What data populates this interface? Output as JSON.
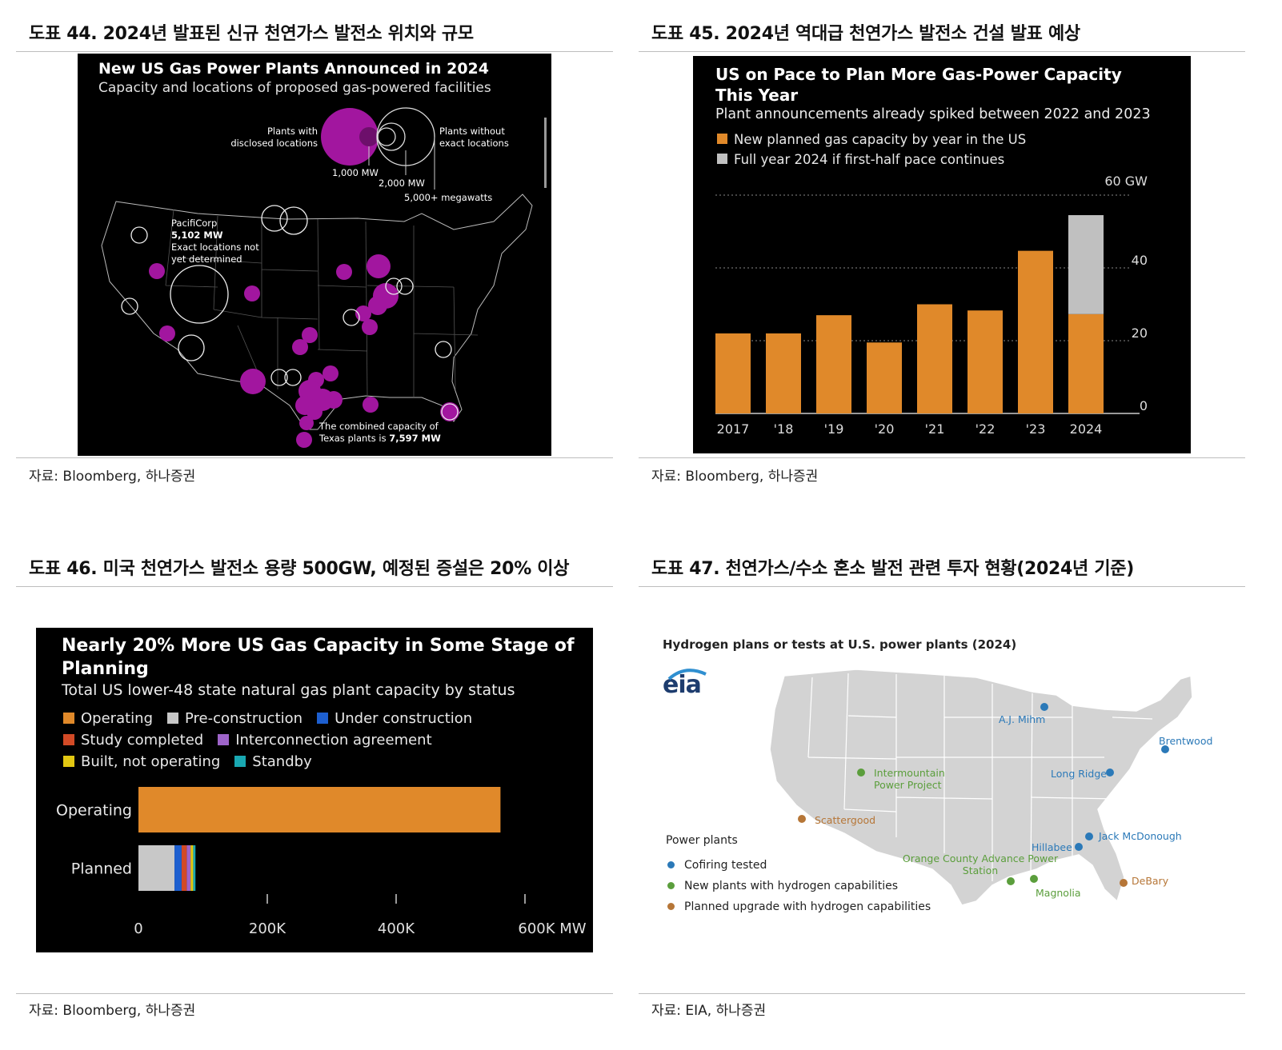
{
  "panels": {
    "p44": {
      "title": "도표 44. 2024년 발표된 신규 천연가스 발전소 위치와 규모",
      "source": "자료: Bloomberg, 하나증권",
      "figure": {
        "title": "New US Gas Power Plants Announced in 2024",
        "subtitle": "Capacity and locations of proposed gas-powered facilities",
        "legend": {
          "disclosed": "Plants with disclosed locations",
          "without": "Plants without exact locations",
          "size_1000": "1,000 MW",
          "size_2000": "2,000 MW",
          "size_5000": "5,000+ megawatts"
        },
        "annotation_pacificorp": [
          "PacifiCorp",
          "5,102 MW",
          "Exact locations not",
          "yet determined"
        ],
        "annotation_texas_line1": "The combined capacity of",
        "annotation_texas_prefix": "Texas plants is ",
        "annotation_texas_value": "7,597 MW",
        "colors": {
          "disclosed": "#a2169f",
          "without": "#ffffff",
          "background": "#000000"
        }
      }
    },
    "p45": {
      "title": "도표 45. 2024년 역대급 천연가스 발전소 건설 발표 예상",
      "source": "자료: Bloomberg, 하나증권"
    },
    "p46": {
      "title": "도표 46. 미국 천연가스 발전소 용량 500GW, 예정된 증설은 20% 이상",
      "source": "자료: Bloomberg, 하나증권"
    },
    "p47": {
      "title": "도표 47. 천연가스/수소 혼소 발전 관련 투자 현황(2024년 기준)",
      "source": "자료: EIA, 하나증권",
      "map": {
        "title": "Hydrogen plans or tests at U.S. power plants (2024)",
        "logo": "eia",
        "legend_title": "Power plants",
        "legend": [
          {
            "label": "Cofiring tested",
            "color": "#2b79b8"
          },
          {
            "label": "New plants with hydrogen capabilities",
            "color": "#5b9e3c"
          },
          {
            "label": "Planned upgrade with hydrogen capabilities",
            "color": "#b67637"
          }
        ],
        "plants": [
          {
            "name": "A.J. Mihm",
            "category": 0
          },
          {
            "name": "Brentwood",
            "category": 0
          },
          {
            "name": "Long Ridge",
            "category": 0
          },
          {
            "name": "Jack McDonough",
            "category": 0
          },
          {
            "name": "Hillabee",
            "category": 0
          },
          {
            "name": "Intermountain Power Project",
            "category": 1
          },
          {
            "name": "Orange County Advance Power Station",
            "category": 1
          },
          {
            "name": "Magnolia",
            "category": 1
          },
          {
            "name": "Scattergood",
            "category": 2
          },
          {
            "name": "DeBary",
            "category": 2
          }
        ],
        "map_fill": "#d3d3d3"
      }
    }
  },
  "chart_data": [
    {
      "type": "bar",
      "title": "US on Pace to Plan More Gas-Power Capacity This Year",
      "subtitle": "Plant announcements already spiked between 2022 and 2023",
      "categories": [
        "2017",
        "'18",
        "'19",
        "'20",
        "'21",
        "'22",
        "'23",
        "2024"
      ],
      "series": [
        {
          "name": "New planned gas capacity by year in the US",
          "color": "#e0892a",
          "values": [
            22,
            22,
            27,
            19.5,
            30,
            28.3,
            44.7,
            27.3
          ]
        },
        {
          "name": "Full year 2024 if first-half pace continues",
          "color": "#c0c0c0",
          "values": [
            0,
            0,
            0,
            0,
            0,
            0,
            0,
            27.2
          ]
        }
      ],
      "stacked": true,
      "ylim": [
        0,
        60
      ],
      "yticks": [
        "0",
        "20",
        "40",
        "60 GW"
      ],
      "ytick_values": [
        0,
        20,
        40,
        60
      ],
      "grid": true,
      "legend_position": "top-left"
    },
    {
      "type": "bar",
      "orientation": "horizontal",
      "title": "Nearly 20% More US Gas Capacity in Some Stage of Planning",
      "subtitle": "Total US lower-48 state natural gas plant capacity by status",
      "categories": [
        "Operating",
        "Planned"
      ],
      "series": [
        {
          "name": "Operating",
          "color": "#e0892a",
          "values": [
            562000,
            0
          ]
        },
        {
          "name": "Pre-construction",
          "color": "#c8c8c8",
          "values": [
            0,
            56000
          ]
        },
        {
          "name": "Under construction",
          "color": "#1d5fd0",
          "values": [
            0,
            11000
          ]
        },
        {
          "name": "Study completed",
          "color": "#d24a26",
          "values": [
            0,
            8000
          ]
        },
        {
          "name": "Interconnection agreement",
          "color": "#9e64c9",
          "values": [
            0,
            6000
          ]
        },
        {
          "name": "Built, not operating",
          "color": "#e2c712",
          "values": [
            0,
            4000
          ]
        },
        {
          "name": "Standby",
          "color": "#19a8b2",
          "values": [
            0,
            3500
          ]
        }
      ],
      "stacked": true,
      "xlim": [
        0,
        600000
      ],
      "xticks": [
        "0",
        "200K",
        "400K",
        "600K MW"
      ],
      "xtick_values": [
        0,
        200000,
        400000,
        600000
      ],
      "legend_position": "top-left"
    }
  ]
}
